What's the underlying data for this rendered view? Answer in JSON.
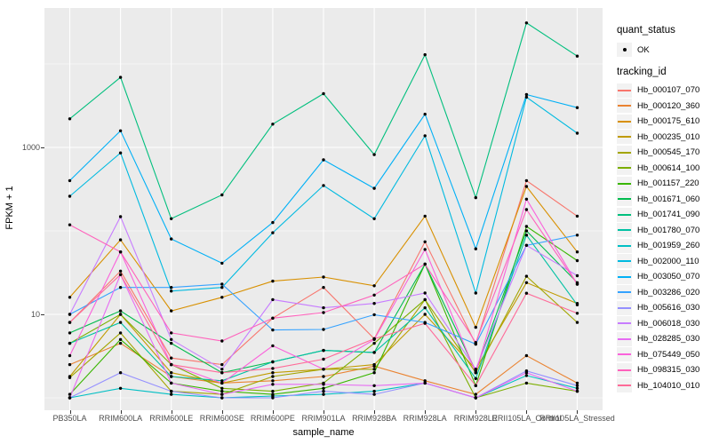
{
  "figure": {
    "background": "#ffffff",
    "panel_background": "#ebebeb",
    "grid_color": "#ffffff",
    "point_color": "#000000",
    "tick_color": "#333333",
    "tick_label_color": "#4d4d4d"
  },
  "axes": {
    "x_title": "sample_name",
    "y_title": "FPKM + 1",
    "y_tick_labels": [
      "1000",
      "10"
    ]
  },
  "legend": {
    "quant_title": "quant_status",
    "ok_label": "OK",
    "tracking_title": "tracking_id"
  },
  "chart_data": {
    "type": "line",
    "title": "",
    "xlabel": "sample_name",
    "ylabel": "FPKM + 1",
    "y_scale": "log10",
    "ylim": [
      0.7,
      47000
    ],
    "y_major_breaks": [
      10,
      1000
    ],
    "y_minor_breaks": [
      1,
      100,
      10000
    ],
    "grid": true,
    "legend_position": "right",
    "point_marker": "black dot (quant_status = OK)",
    "categories": [
      "PB350LA",
      "RRIM600LA",
      "RRIM600LE",
      "RRIM600SE",
      "RRIM600PE",
      "RRIM901LA",
      "RRIM928BA",
      "RRIM928LA",
      "RRIM928LE",
      "RRII105LA_Control",
      "RRII105LA_Stressed"
    ],
    "series": [
      {
        "name": "Hb_000107_070",
        "color": "#F8766D",
        "values": [
          8,
          33,
          3,
          2.5,
          9,
          21,
          5.1,
          74,
          4.4,
          400,
          150
        ]
      },
      {
        "name": "Hb_000120_360",
        "color": "#EA8331",
        "values": [
          2.5,
          4.5,
          1.8,
          1.5,
          1.6,
          1.8,
          2.4,
          1.6,
          1.1,
          3.2,
          1.5
        ]
      },
      {
        "name": "Hb_000175_610",
        "color": "#D89000",
        "values": [
          16,
          78,
          11,
          16,
          25,
          28,
          22,
          150,
          7,
          340,
          56
        ]
      },
      {
        "name": "Hb_000235_010",
        "color": "#C09B00",
        "values": [
          1.8,
          10,
          2.0,
          1.5,
          2.0,
          2.2,
          2.5,
          10,
          2.2,
          24,
          13.5
        ]
      },
      {
        "name": "Hb_000545_170",
        "color": "#A3A500",
        "values": [
          1.75,
          6,
          1.2,
          1.1,
          1.8,
          2.2,
          2.2,
          15,
          2.0,
          28.6,
          8
        ]
      },
      {
        "name": "Hb_000614_100",
        "color": "#7CAE00",
        "values": [
          4.5,
          10,
          2.5,
          1.3,
          1.2,
          1.5,
          4.5,
          15,
          1.0,
          1.5,
          1.2
        ]
      },
      {
        "name": "Hb_001157_220",
        "color": "#39B600",
        "values": [
          1.1,
          5,
          1.5,
          1.2,
          1.1,
          1.3,
          2.0,
          40,
          1.4,
          113,
          44
        ]
      },
      {
        "name": "Hb_001671_060",
        "color": "#00BB4E",
        "values": [
          6,
          11,
          4.5,
          2.0,
          2.7,
          3.7,
          3.5,
          40,
          2.1,
          100,
          24
        ]
      },
      {
        "name": "Hb_001741_090",
        "color": "#00BF7D",
        "values": [
          2200,
          6900,
          140,
          270,
          1900,
          4400,
          820,
          12900,
          250,
          31000,
          12400
        ]
      },
      {
        "name": "Hb_001780_070",
        "color": "#00C1A3",
        "values": [
          4.5,
          8,
          1.8,
          1.6,
          2.7,
          3.7,
          3.5,
          12,
          1.7,
          89,
          13
        ]
      },
      {
        "name": "Hb_001959_260",
        "color": "#00BFC4",
        "values": [
          1.0,
          1.3,
          1.1,
          1.0,
          1.05,
          1.1,
          1.2,
          1.5,
          1.0,
          1.85,
          1.3
        ]
      },
      {
        "name": "Hb_002000_110",
        "color": "#00BAE0",
        "values": [
          260,
          860,
          19,
          21,
          95,
          350,
          140,
          1380,
          18,
          4000,
          1480
        ]
      },
      {
        "name": "Hb_003050_070",
        "color": "#00B0F6",
        "values": [
          400,
          1580,
          80,
          41,
          126,
          710,
          323,
          2500,
          61,
          4300,
          3000
        ]
      },
      {
        "name": "Hb_003286_020",
        "color": "#35A2FF",
        "values": [
          10,
          21,
          21,
          23,
          6.5,
          6.6,
          9.9,
          8,
          4.4,
          67,
          89
        ]
      },
      {
        "name": "Hb_005616_030",
        "color": "#9590FF",
        "values": [
          1.0,
          2.0,
          1.2,
          1.0,
          1.0,
          1.2,
          1.1,
          1.5,
          1.0,
          2.1,
          1.4
        ]
      },
      {
        "name": "Hb_006018_030",
        "color": "#C77CFF",
        "values": [
          10,
          148,
          5,
          2.2,
          15,
          12,
          13.5,
          18,
          2.2,
          67,
          29
        ]
      },
      {
        "name": "Hb_028285_030",
        "color": "#E76BF3",
        "values": [
          1.0,
          30,
          1.5,
          1.1,
          1.45,
          1.45,
          1.4,
          1.5,
          1.0,
          2.0,
          1.2
        ]
      },
      {
        "name": "Hb_075449_050",
        "color": "#FA62DB",
        "values": [
          3.2,
          56,
          2.5,
          1.5,
          4.2,
          2.2,
          5,
          60,
          2.0,
          240,
          23
        ]
      },
      {
        "name": "Hb_098315_030",
        "color": "#FF62BC",
        "values": [
          118,
          56,
          6,
          4.8,
          9,
          10.5,
          17,
          40,
          4.6,
          180,
          23
        ]
      },
      {
        "name": "Hb_104010_010",
        "color": "#FF6A98",
        "values": [
          8,
          30,
          2.5,
          2.0,
          2.25,
          2.9,
          5.1,
          7.8,
          1.4,
          17.9,
          10.3
        ]
      }
    ]
  }
}
